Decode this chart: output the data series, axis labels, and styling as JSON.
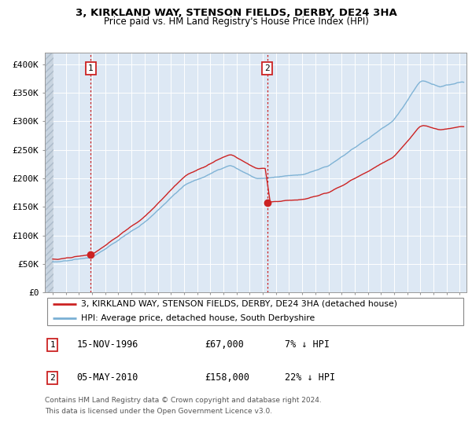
{
  "title1": "3, KIRKLAND WAY, STENSON FIELDS, DERBY, DE24 3HA",
  "title2": "Price paid vs. HM Land Registry's House Price Index (HPI)",
  "ylim": [
    0,
    420000
  ],
  "yticks": [
    0,
    50000,
    100000,
    150000,
    200000,
    250000,
    300000,
    350000,
    400000
  ],
  "ytick_labels": [
    "£0",
    "£50K",
    "£100K",
    "£150K",
    "£200K",
    "£250K",
    "£300K",
    "£350K",
    "£400K"
  ],
  "hpi_color": "#7ab0d4",
  "price_color": "#cc2222",
  "sale1_date": 1996.88,
  "sale1_price": 67000,
  "sale2_date": 2010.34,
  "sale2_price": 158000,
  "legend_line1": "3, KIRKLAND WAY, STENSON FIELDS, DERBY, DE24 3HA (detached house)",
  "legend_line2": "HPI: Average price, detached house, South Derbyshire",
  "row1_num": "1",
  "row1_date": "15-NOV-1996",
  "row1_price": "£67,000",
  "row1_hpi": "7% ↓ HPI",
  "row2_num": "2",
  "row2_date": "05-MAY-2010",
  "row2_price": "£158,000",
  "row2_hpi": "22% ↓ HPI",
  "footnote1": "Contains HM Land Registry data © Crown copyright and database right 2024.",
  "footnote2": "This data is licensed under the Open Government Licence v3.0.",
  "bg_color": "#dde8f4",
  "grid_color": "#ffffff",
  "hatch_color": "#c0ccd8"
}
